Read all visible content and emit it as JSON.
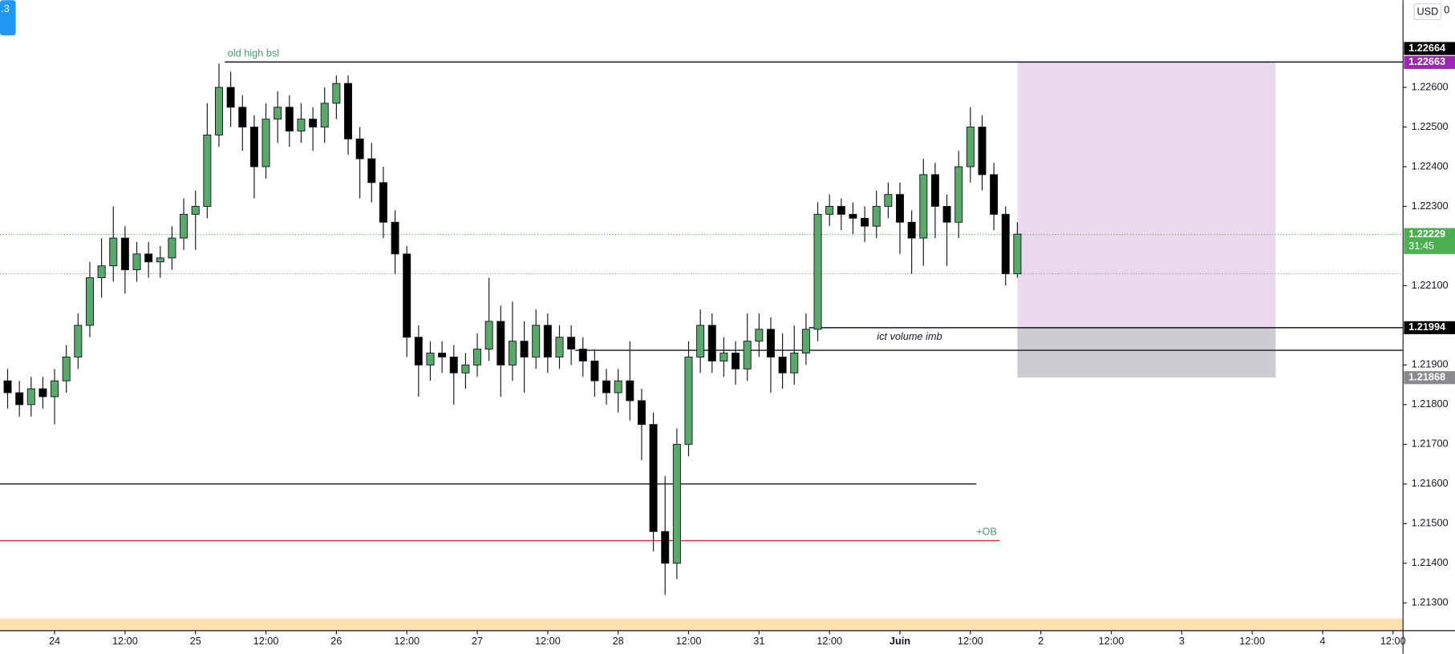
{
  "chart_data": {
    "type": "candlestick",
    "x": [
      -8,
      -6,
      -4,
      -2,
      0,
      2,
      4,
      6,
      8,
      10,
      12,
      14,
      16,
      18,
      20,
      22,
      24,
      26,
      28,
      30,
      32,
      34,
      36,
      38,
      40,
      42,
      44,
      46,
      48,
      50,
      52,
      54,
      56,
      58,
      60,
      62,
      64,
      66,
      68,
      70,
      72,
      74,
      76,
      78,
      80,
      82,
      84,
      86,
      88,
      90,
      92,
      94,
      96,
      98,
      100,
      102,
      104,
      106,
      108,
      110,
      112,
      114,
      116,
      118,
      120,
      122,
      124,
      126,
      128,
      130,
      132,
      134,
      136,
      138,
      140,
      142,
      144,
      146,
      148,
      150,
      152,
      154,
      156,
      158,
      160,
      162,
      164
    ],
    "open": [
      1.2186,
      1.2183,
      1.218,
      1.2184,
      1.2182,
      1.2186,
      1.2192,
      1.22,
      1.2212,
      1.2215,
      1.2222,
      1.2214,
      1.2218,
      1.2216,
      1.2217,
      1.2222,
      1.2228,
      1.223,
      1.2248,
      1.226,
      1.2255,
      1.225,
      1.224,
      1.2252,
      1.2255,
      1.2249,
      1.2252,
      1.225,
      1.2256,
      1.2261,
      1.2247,
      1.2242,
      1.2236,
      1.2226,
      1.2218,
      1.2197,
      1.219,
      1.2193,
      1.2192,
      1.2188,
      1.219,
      1.2194,
      1.2201,
      1.219,
      1.2196,
      1.2192,
      1.22,
      1.2192,
      1.2197,
      1.2194,
      1.2191,
      1.2186,
      1.2183,
      1.2186,
      1.2181,
      1.2175,
      1.2148,
      1.214,
      1.217,
      1.2192,
      1.22,
      1.2191,
      1.2193,
      1.2189,
      1.2196,
      1.2199,
      1.2192,
      1.2188,
      1.2193,
      1.2199,
      1.2228,
      1.223,
      1.2228,
      1.2227,
      1.2225,
      1.223,
      1.2233,
      1.2226,
      1.2222,
      1.2238,
      1.223,
      1.2226,
      1.224,
      1.225,
      1.2238,
      1.2228,
      1.2213
    ],
    "high": [
      1.2189,
      1.2186,
      1.2187,
      1.2187,
      1.2189,
      1.2195,
      1.2203,
      1.2216,
      1.2222,
      1.223,
      1.2225,
      1.2221,
      1.2221,
      1.222,
      1.2225,
      1.2232,
      1.2234,
      1.2256,
      1.2266,
      1.2264,
      1.2258,
      1.2253,
      1.2256,
      1.2259,
      1.2258,
      1.2256,
      1.2255,
      1.226,
      1.2263,
      1.2263,
      1.225,
      1.2246,
      1.224,
      1.2229,
      1.222,
      1.22,
      1.2196,
      1.2196,
      1.2195,
      1.2193,
      1.2198,
      1.2212,
      1.2205,
      1.2206,
      1.2201,
      1.2204,
      1.2203,
      1.22,
      1.22,
      1.2197,
      1.2194,
      1.2189,
      1.2189,
      1.2196,
      1.2184,
      1.2178,
      1.2162,
      1.2174,
      1.2196,
      1.2204,
      1.2203,
      1.2197,
      1.2196,
      1.2203,
      1.2203,
      1.2202,
      1.2198,
      1.22,
      1.2203,
      1.2231,
      1.2233,
      1.2232,
      1.2231,
      1.223,
      1.2234,
      1.2236,
      1.2236,
      1.2229,
      1.2242,
      1.2241,
      1.2233,
      1.2244,
      1.2255,
      1.2253,
      1.2241,
      1.223,
      1.2226
    ],
    "low": [
      1.2179,
      1.2177,
      1.2177,
      1.2179,
      1.2175,
      1.2183,
      1.2189,
      1.2197,
      1.2207,
      1.2211,
      1.2208,
      1.2211,
      1.2212,
      1.2212,
      1.2214,
      1.2219,
      1.2219,
      1.2227,
      1.2245,
      1.225,
      1.2244,
      1.2232,
      1.2237,
      1.2246,
      1.2245,
      1.2246,
      1.2244,
      1.2246,
      1.2252,
      1.2243,
      1.2232,
      1.2231,
      1.2222,
      1.2213,
      1.2192,
      1.2182,
      1.2186,
      1.2188,
      1.218,
      1.2184,
      1.2187,
      1.2191,
      1.2182,
      1.2186,
      1.2183,
      1.2189,
      1.2188,
      1.2189,
      1.219,
      1.2187,
      1.2182,
      1.218,
      1.2178,
      1.2176,
      1.2166,
      1.2143,
      1.2132,
      1.2136,
      1.2167,
      1.2188,
      1.2188,
      1.2187,
      1.2185,
      1.2186,
      1.2192,
      1.2183,
      1.2184,
      1.2185,
      1.219,
      1.2196,
      1.2225,
      1.2224,
      1.2223,
      1.2221,
      1.2222,
      1.2227,
      1.2218,
      1.2213,
      1.2215,
      1.2222,
      1.2215,
      1.2222,
      1.2236,
      1.2234,
      1.2224,
      1.221,
      1.2212
    ],
    "close": [
      1.2183,
      1.218,
      1.2184,
      1.2182,
      1.2186,
      1.2192,
      1.22,
      1.2212,
      1.2215,
      1.2222,
      1.2214,
      1.2218,
      1.2216,
      1.2217,
      1.2222,
      1.2228,
      1.223,
      1.2248,
      1.226,
      1.2255,
      1.225,
      1.224,
      1.2252,
      1.2255,
      1.2249,
      1.2252,
      1.225,
      1.2256,
      1.2261,
      1.2247,
      1.2242,
      1.2236,
      1.2226,
      1.2218,
      1.2197,
      1.219,
      1.2193,
      1.2192,
      1.2188,
      1.219,
      1.2194,
      1.2201,
      1.219,
      1.2196,
      1.2192,
      1.22,
      1.2192,
      1.2197,
      1.2194,
      1.2191,
      1.2186,
      1.2183,
      1.2186,
      1.2181,
      1.2175,
      1.2148,
      1.214,
      1.217,
      1.2192,
      1.22,
      1.2191,
      1.2193,
      1.2189,
      1.2196,
      1.2199,
      1.2192,
      1.2188,
      1.2193,
      1.2199,
      1.2228,
      1.223,
      1.2228,
      1.2227,
      1.2225,
      1.223,
      1.2233,
      1.2226,
      1.2222,
      1.2238,
      1.223,
      1.2226,
      1.224,
      1.225,
      1.2238,
      1.2228,
      1.2213,
      1.2223
    ],
    "up_color": "#5aa96a",
    "down_color": "#000000",
    "xlim": [
      -9.3,
      229.7
    ],
    "xticks": [
      {
        "value": 0,
        "label": "24"
      },
      {
        "value": 12,
        "label": "12:00"
      },
      {
        "value": 24,
        "label": "25"
      },
      {
        "value": 36,
        "label": "12:00"
      },
      {
        "value": 48,
        "label": "26"
      },
      {
        "value": 60,
        "label": "12:00"
      },
      {
        "value": 72,
        "label": "27"
      },
      {
        "value": 84,
        "label": "12:00"
      },
      {
        "value": 96,
        "label": "28"
      },
      {
        "value": 108,
        "label": "12:00"
      },
      {
        "value": 120,
        "label": "31"
      },
      {
        "value": 132,
        "label": "12:00"
      },
      {
        "value": 144,
        "label": "Juin"
      },
      {
        "value": 156,
        "label": "12:00"
      },
      {
        "value": 168,
        "label": "2"
      },
      {
        "value": 180,
        "label": "12:00"
      },
      {
        "value": 192,
        "label": "3"
      },
      {
        "value": 204,
        "label": "12:00"
      },
      {
        "value": 216,
        "label": "4"
      },
      {
        "value": 228,
        "label": "12:00"
      }
    ],
    "ylim": [
      1.2123,
      1.2282
    ],
    "yticks": [
      {
        "value": 1.226,
        "label": "1.22600"
      },
      {
        "value": 1.225,
        "label": "1.22500"
      },
      {
        "value": 1.224,
        "label": "1.22400"
      },
      {
        "value": 1.223,
        "label": "1.22300"
      },
      {
        "value": 1.221,
        "label": "1.22100"
      },
      {
        "value": 1.219,
        "label": "1.21900"
      },
      {
        "value": 1.218,
        "label": "1.21800"
      },
      {
        "value": 1.217,
        "label": "1.21700"
      },
      {
        "value": 1.216,
        "label": "1.21600"
      },
      {
        "value": 1.215,
        "label": "1.21500"
      },
      {
        "value": 1.214,
        "label": "1.21400"
      },
      {
        "value": 1.213,
        "label": "1.21300"
      }
    ],
    "annotations": [
      {
        "label": "old high bsl",
        "value": 1.22664,
        "x": [
          29,
          null
        ],
        "color": "#131722",
        "label_color": "#4a9a6a"
      },
      {
        "value": 1.21994,
        "x": [
          128.5,
          null
        ],
        "color": "#131722"
      },
      {
        "label": "ict volume imb",
        "value": 1.21937,
        "x": [
          88.7,
          null
        ],
        "color": "#131722",
        "label_color": "#131722"
      },
      {
        "value": 1.216,
        "x": [
          null,
          157
        ],
        "color": "#131722"
      },
      {
        "label": "+OB",
        "value": 1.21457,
        "x": [
          null,
          161
        ],
        "color": "#d32f2f",
        "label_color": "#4a9a6a"
      }
    ],
    "boxes": [
      {
        "top": 1.22663,
        "bottom": 1.21994,
        "x": [
          164,
          208
        ],
        "color": "#ead8ef"
      },
      {
        "top": 1.21994,
        "bottom": 1.21868,
        "x": [
          164,
          208
        ],
        "color": "#cdcdd1"
      }
    ],
    "price_lines": [
      {
        "value": 1.22229,
        "color": "#4caf50"
      },
      {
        "value": 1.2213,
        "color": "#9598a1"
      }
    ],
    "price_tags": [
      {
        "value": 1.22663,
        "color": "#9c27b0"
      },
      {
        "value": 1.22664,
        "color": "#000000"
      },
      {
        "value": 1.22229,
        "color": "#4caf50",
        "countdown": "31:45"
      },
      {
        "value": 1.21994,
        "color": "#000000"
      },
      {
        "value": 1.21868,
        "color": "#8a8a8e"
      }
    ]
  },
  "ui": {
    "badge": ".3",
    "currency": "USD",
    "corner": "0"
  }
}
